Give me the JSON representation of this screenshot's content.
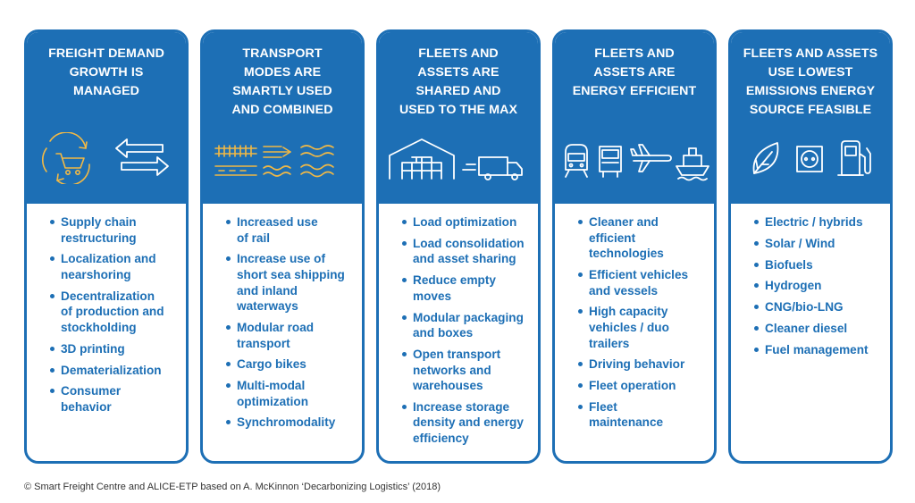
{
  "colors": {
    "primary": "#1d6fb5",
    "accent": "#f2b945",
    "white": "#ffffff"
  },
  "columns": [
    {
      "title": "FREIGHT DEMAND\nGROWTH IS\nMANAGED",
      "icons": [
        "cart-cycle-icon",
        "two-way-arrows-icon"
      ],
      "items": [
        "Supply chain\nrestructuring",
        "Localization and\nnearshoring",
        "Decentralization\nof production and\nstockholding",
        "3D printing",
        "Dematerialization",
        "Consumer\nbehavior"
      ]
    },
    {
      "title": "TRANSPORT\nMODES ARE\nSMARTLY USED\nAND COMBINED",
      "icons": [
        "rail-track-icon",
        "fast-arrows-icon",
        "waves-icon",
        "road-icon",
        "wavy-lines-icon",
        "sea-waves-icon"
      ],
      "items": [
        "Increased use\nof rail",
        "Increase use of\nshort sea shipping\nand inland\nwaterways",
        "Modular road\ntransport",
        "Cargo bikes",
        "Multi-modal\noptimization",
        "Synchromodality"
      ]
    },
    {
      "title": "FLEETS AND\nASSETS ARE\nSHARED AND\nUSED TO THE MAX",
      "icons": [
        "warehouse-icon",
        "truck-icon"
      ],
      "items": [
        "Load optimization",
        "Load consolidation\nand asset sharing",
        "Reduce empty\nmoves",
        "Modular packaging\nand boxes",
        "Open transport\nnetworks and\nwarehouses",
        "Increase storage\ndensity and energy\nefficiency"
      ]
    },
    {
      "title": "FLEETS AND\nASSETS ARE\nENERGY EFFICIENT",
      "icons": [
        "train-icon",
        "lorry-icon",
        "airplane-icon",
        "ship-icon"
      ],
      "items": [
        "Cleaner and\nefficient\ntechnologies",
        "Efficient vehicles\nand vessels",
        "High capacity\nvehicles / duo\ntrailers",
        "Driving behavior",
        "Fleet operation",
        "Fleet\nmaintenance"
      ]
    },
    {
      "title": "FLEETS AND ASSETS\nUSE LOWEST\nEMISSIONS ENERGY\nSOURCE FEASIBLE",
      "icons": [
        "leaf-icon",
        "power-socket-icon",
        "fuel-pump-icon"
      ],
      "items": [
        "Electric / hybrids",
        "Solar / Wind",
        "Biofuels",
        "Hydrogen",
        "CNG/bio-LNG",
        "Cleaner diesel",
        "Fuel management"
      ]
    }
  ],
  "footer": "© Smart Freight Centre and ALICE-ETP based on A. McKinnon ‘Decarbonizing Logistics’ (2018)"
}
